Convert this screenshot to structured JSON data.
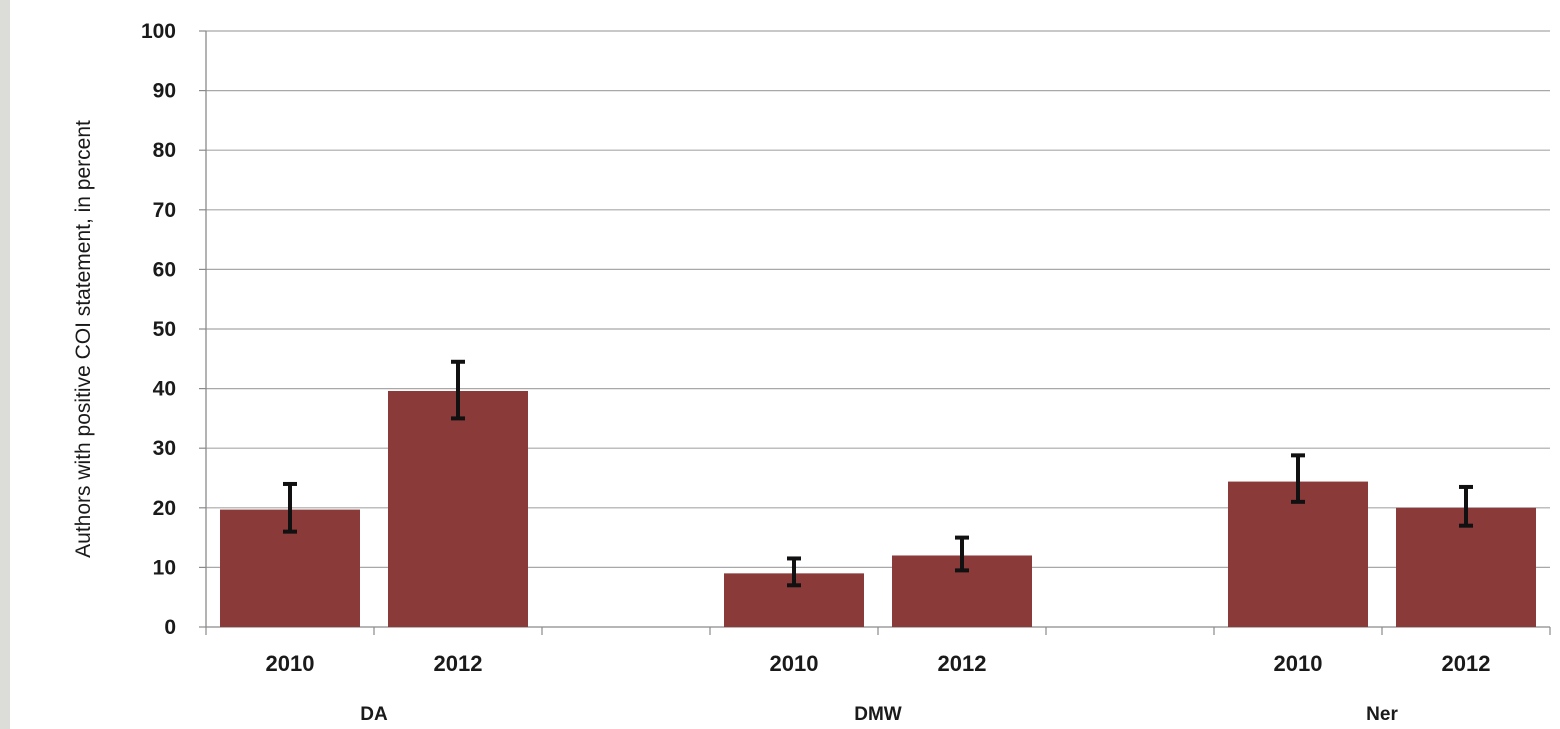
{
  "chart_data": {
    "type": "bar",
    "title": "",
    "ylabel": "Authors with positive COI statement, in percent",
    "xlabel": "",
    "ylim": [
      0,
      100
    ],
    "yticks": [
      0,
      10,
      20,
      30,
      40,
      50,
      60,
      70,
      80,
      90,
      100
    ],
    "grid": true,
    "bar_color": "#8b3a3a",
    "groups": [
      {
        "name": "DA",
        "bars": [
          {
            "category": "2010",
            "value": 19.7,
            "error_low": 16,
            "error_high": 24
          },
          {
            "category": "2012",
            "value": 39.6,
            "error_low": 35,
            "error_high": 44.5
          }
        ]
      },
      {
        "name": "DMW",
        "bars": [
          {
            "category": "2010",
            "value": 9.0,
            "error_low": 7,
            "error_high": 11.5
          },
          {
            "category": "2012",
            "value": 12.0,
            "error_low": 9.5,
            "error_high": 15
          }
        ]
      },
      {
        "name": "Ner",
        "bars": [
          {
            "category": "2010",
            "value": 24.4,
            "error_low": 21,
            "error_high": 28.8
          },
          {
            "category": "2012",
            "value": 20.0,
            "error_low": 17,
            "error_high": 23.5
          }
        ]
      }
    ]
  }
}
